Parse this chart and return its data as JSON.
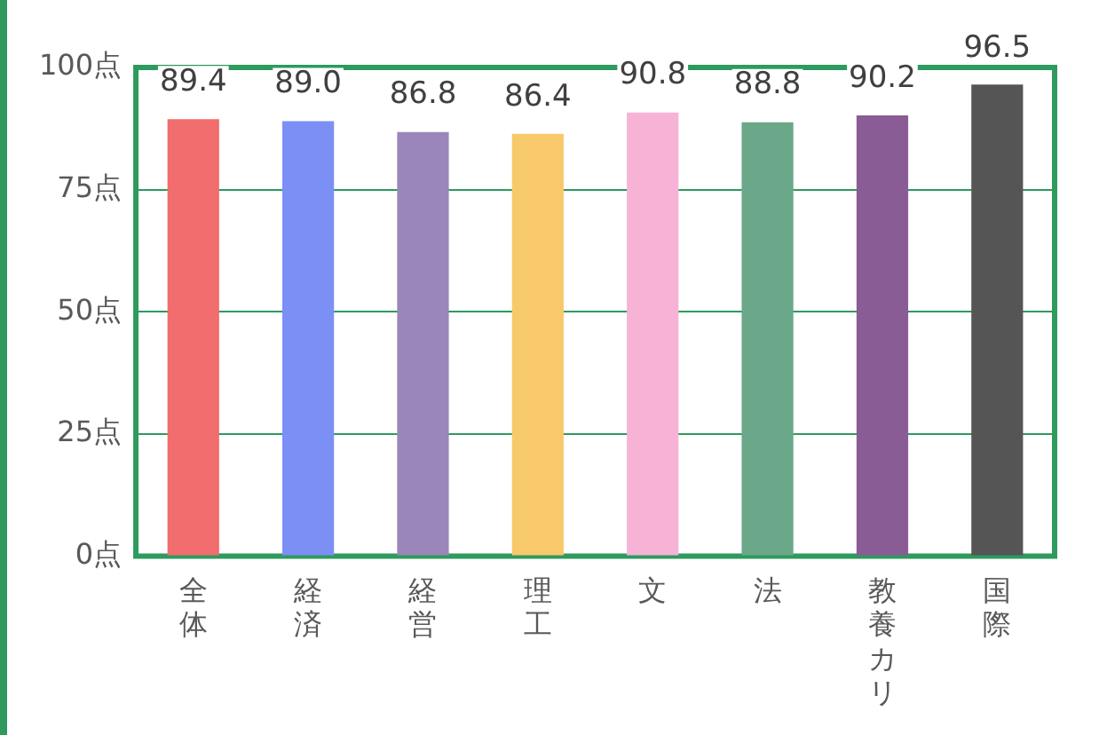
{
  "chart_data": {
    "type": "bar",
    "categories": [
      "全体",
      "経済",
      "経営",
      "理工",
      "文",
      "法",
      "教養カリ",
      "国際"
    ],
    "values": [
      89.4,
      89.0,
      86.8,
      86.4,
      90.8,
      88.8,
      90.2,
      96.5
    ],
    "colors": [
      "#f26d6d",
      "#7b8ff5",
      "#9a86b8",
      "#f8c96a",
      "#f7b3d6",
      "#6aa889",
      "#8a5c96",
      "#555555"
    ],
    "value_labels": [
      "89.4",
      "89.0",
      "86.8",
      "86.4",
      "90.8",
      "88.8",
      "90.2",
      "96.5"
    ],
    "ylim": [
      0,
      100
    ],
    "yticks": [
      {
        "value": 0,
        "label": "0点"
      },
      {
        "value": 25,
        "label": "25点"
      },
      {
        "value": 50,
        "label": "50点"
      },
      {
        "value": 75,
        "label": "75点"
      },
      {
        "value": 100,
        "label": "100点"
      }
    ],
    "grid": "y",
    "legend": false
  }
}
